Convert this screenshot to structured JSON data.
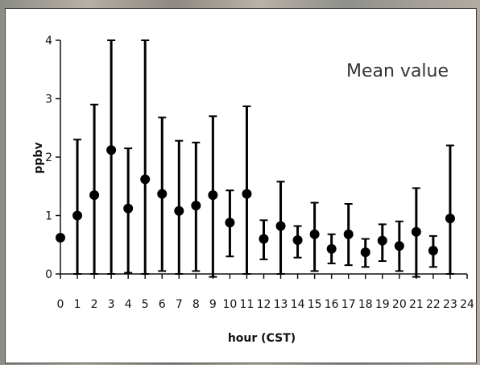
{
  "chart_data": {
    "type": "scatter",
    "title": "",
    "annotation": "Mean value",
    "xlabel": "hour (CST)",
    "ylabel": "ppbv",
    "xlim": [
      0,
      24
    ],
    "ylim": [
      0,
      4
    ],
    "x_ticks": [
      "0",
      "1",
      "2",
      "3",
      "4",
      "5",
      "6",
      "7",
      "8",
      "9",
      "10",
      "11",
      "12",
      "13",
      "14",
      "15",
      "16",
      "17",
      "18",
      "19",
      "20",
      "21",
      "22",
      "23",
      "24"
    ],
    "y_ticks": [
      "0",
      "1",
      "2",
      "3",
      "4"
    ],
    "grid": false,
    "legend": "none",
    "series": [
      {
        "points": [
          {
            "x": 0,
            "y": 0.62,
            "lo": 0.62,
            "hi": 0.62
          },
          {
            "x": 1,
            "y": 1.0,
            "lo": 0.0,
            "hi": 2.3
          },
          {
            "x": 2,
            "y": 1.35,
            "lo": 0.0,
            "hi": 2.9
          },
          {
            "x": 3,
            "y": 2.12,
            "lo": 0.0,
            "hi": 4.0
          },
          {
            "x": 4,
            "y": 1.12,
            "lo": 0.02,
            "hi": 2.15
          },
          {
            "x": 5,
            "y": 1.62,
            "lo": 0.0,
            "hi": 4.0
          },
          {
            "x": 6,
            "y": 1.37,
            "lo": 0.05,
            "hi": 2.68
          },
          {
            "x": 7,
            "y": 1.08,
            "lo": 0.0,
            "hi": 2.28
          },
          {
            "x": 8,
            "y": 1.17,
            "lo": 0.05,
            "hi": 2.25
          },
          {
            "x": 9,
            "y": 1.35,
            "lo": -0.05,
            "hi": 2.7
          },
          {
            "x": 10,
            "y": 0.88,
            "lo": 0.3,
            "hi": 1.43
          },
          {
            "x": 11,
            "y": 1.37,
            "lo": 0.0,
            "hi": 2.87
          },
          {
            "x": 12,
            "y": 0.6,
            "lo": 0.25,
            "hi": 0.92
          },
          {
            "x": 13,
            "y": 0.82,
            "lo": 0.0,
            "hi": 1.58
          },
          {
            "x": 14,
            "y": 0.58,
            "lo": 0.28,
            "hi": 0.82
          },
          {
            "x": 15,
            "y": 0.68,
            "lo": 0.05,
            "hi": 1.22
          },
          {
            "x": 16,
            "y": 0.43,
            "lo": 0.18,
            "hi": 0.68
          },
          {
            "x": 17,
            "y": 0.68,
            "lo": 0.15,
            "hi": 1.2
          },
          {
            "x": 18,
            "y": 0.37,
            "lo": 0.12,
            "hi": 0.6
          },
          {
            "x": 19,
            "y": 0.57,
            "lo": 0.22,
            "hi": 0.85
          },
          {
            "x": 20,
            "y": 0.48,
            "lo": 0.05,
            "hi": 0.9
          },
          {
            "x": 21,
            "y": 0.72,
            "lo": -0.05,
            "hi": 1.47
          },
          {
            "x": 22,
            "y": 0.4,
            "lo": 0.12,
            "hi": 0.65
          },
          {
            "x": 23,
            "y": 0.95,
            "lo": 0.0,
            "hi": 2.2
          }
        ]
      }
    ],
    "colors": {
      "marker": "#000000",
      "axis": "#111111"
    }
  }
}
